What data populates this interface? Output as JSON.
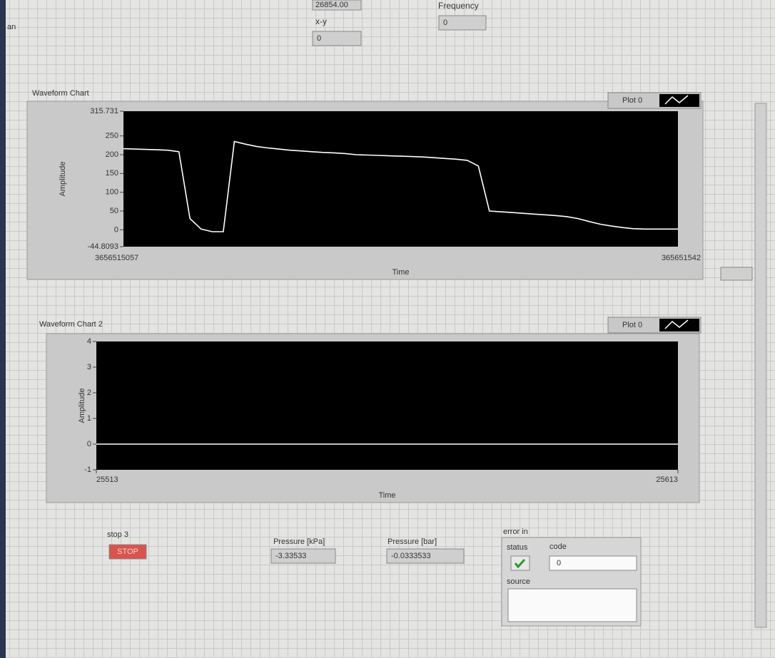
{
  "left_edge_text": "an",
  "top_controls": {
    "value_top": "26854.00",
    "xy_label": "x-y",
    "xy_value": "0",
    "frequency_label": "Frequency",
    "frequency_value": "0"
  },
  "chart_data": [
    {
      "type": "line",
      "title": "Waveform Chart",
      "y_label": "Amplitude",
      "x_label": "Time",
      "x_end_labels": [
        "3656515057",
        "365651542"
      ],
      "ylim": [
        -44.8093,
        315.731
      ],
      "yticks": [
        -44.8093,
        0,
        50,
        100,
        150,
        200,
        250,
        315.731
      ],
      "series": [
        {
          "name": "Plot 0",
          "color": "#ffffff",
          "values": [
            216,
            215,
            214,
            213,
            212,
            208,
            30,
            2,
            -5,
            -5,
            235,
            228,
            222,
            218,
            215,
            212,
            210,
            208,
            206,
            205,
            203,
            200,
            199,
            198,
            197,
            196,
            195,
            194,
            192,
            190,
            188,
            185,
            170,
            50,
            48,
            46,
            44,
            42,
            40,
            38,
            35,
            30,
            22,
            15,
            10,
            6,
            3,
            2,
            2,
            2,
            2
          ]
        }
      ]
    },
    {
      "type": "line",
      "title": "Waveform Chart 2",
      "y_label": "Amplitude",
      "x_label": "Time",
      "x": [
        25513,
        25613
      ],
      "xlim": [
        25513,
        25613
      ],
      "xticks": [
        25513,
        25613
      ],
      "ylim": [
        -1,
        4
      ],
      "yticks": [
        -1,
        0,
        1,
        2,
        3,
        4
      ],
      "series": [
        {
          "name": "Plot 0",
          "color": "#ffffff",
          "values": [
            0,
            0
          ]
        }
      ]
    }
  ],
  "controls": {
    "stop_label": "stop 3",
    "stop_button": "STOP",
    "kpa_label": "Pressure [kPa]",
    "kpa_value": "-3.33533",
    "bar_label": "Pressure [bar]",
    "bar_value": "-0.0333533",
    "error_label": "error in",
    "status_label": "status",
    "code_label": "code",
    "code_value": "0",
    "source_label": "source"
  }
}
